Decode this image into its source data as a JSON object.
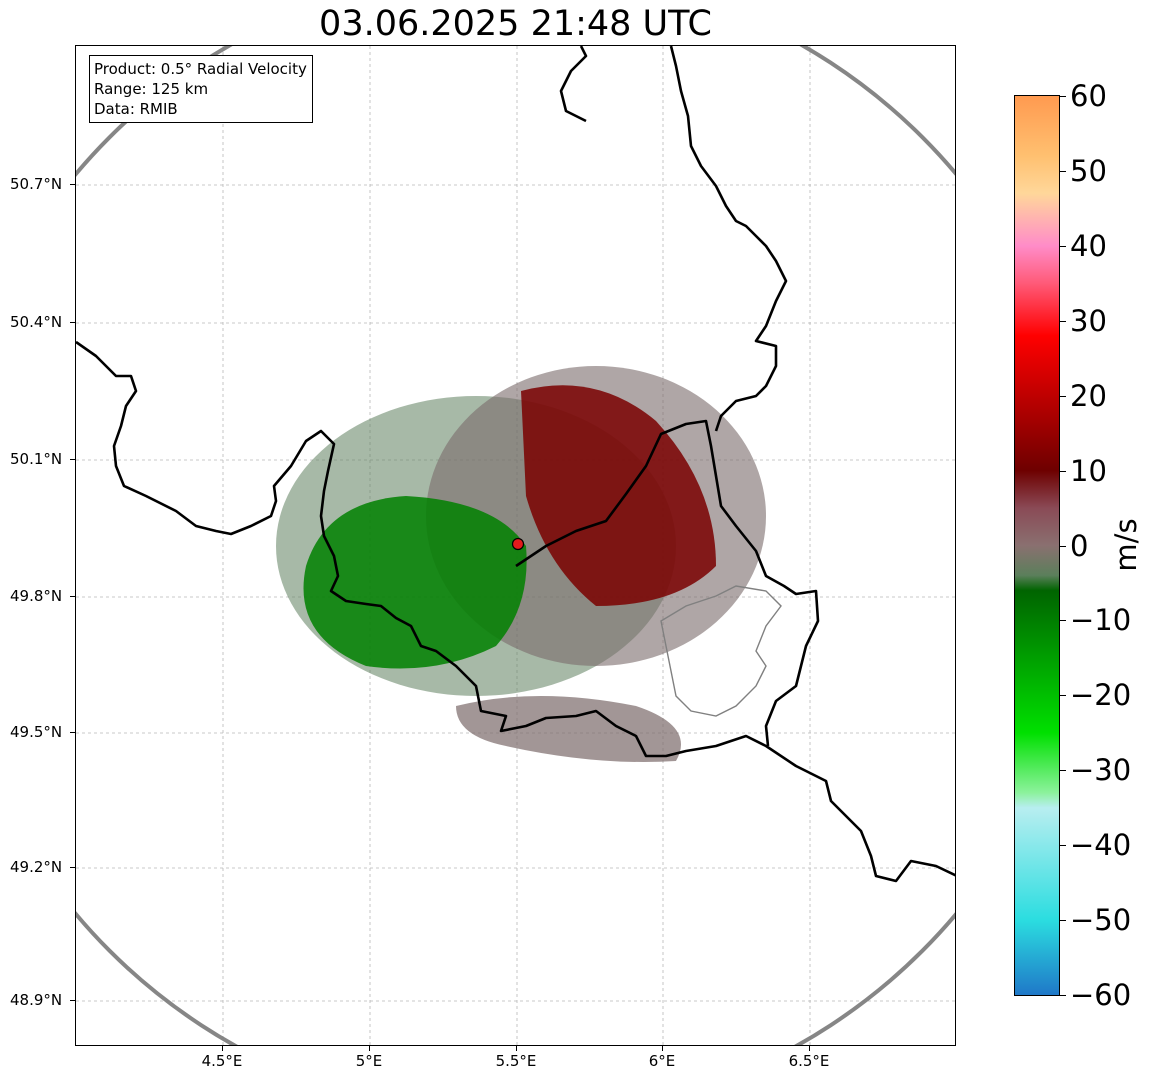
{
  "title": "03.06.2025 21:48 UTC",
  "info_box": {
    "product": "Product: 0.5° Radial Velocity",
    "range": "Range: 125 km",
    "source": "Data: RMIB"
  },
  "axes": {
    "lat_labels": [
      "50.7°N",
      "50.4°N",
      "50.1°N",
      "49.8°N",
      "49.5°N",
      "49.2°N",
      "48.9°N"
    ],
    "lon_labels": [
      "4.5°E",
      "5°E",
      "5.5°E",
      "6°E",
      "6.5°E"
    ],
    "grid": true
  },
  "radar": {
    "site_marker_color": "#e41a1c",
    "range_ring_color": "#808080",
    "border_color": "#000000"
  },
  "colorbar": {
    "unit": "m/s",
    "min": -60,
    "max": 60,
    "tick_labels": [
      "60",
      "50",
      "40",
      "30",
      "20",
      "10",
      "0",
      "−10",
      "−20",
      "−30",
      "−40",
      "−50",
      "−60"
    ],
    "stops": [
      {
        "v": -60,
        "color": "#1f78c8"
      },
      {
        "v": -50,
        "color": "#2bdde0"
      },
      {
        "v": -35,
        "color": "#b8eef0"
      },
      {
        "v": -33,
        "color": "#8cf29c"
      },
      {
        "v": -25,
        "color": "#00e000"
      },
      {
        "v": -6,
        "color": "#006400"
      },
      {
        "v": -4,
        "color": "#5b7f5b"
      },
      {
        "v": 0,
        "color": "#8a7070"
      },
      {
        "v": 5,
        "color": "#8a4a56"
      },
      {
        "v": 10,
        "color": "#6e0000"
      },
      {
        "v": 28,
        "color": "#ff0000"
      },
      {
        "v": 35,
        "color": "#ff5a78"
      },
      {
        "v": 40,
        "color": "#ff8cc8"
      },
      {
        "v": 47,
        "color": "#ffd79a"
      },
      {
        "v": 52,
        "color": "#ffc070"
      },
      {
        "v": 60,
        "color": "#ff9a50"
      }
    ]
  }
}
